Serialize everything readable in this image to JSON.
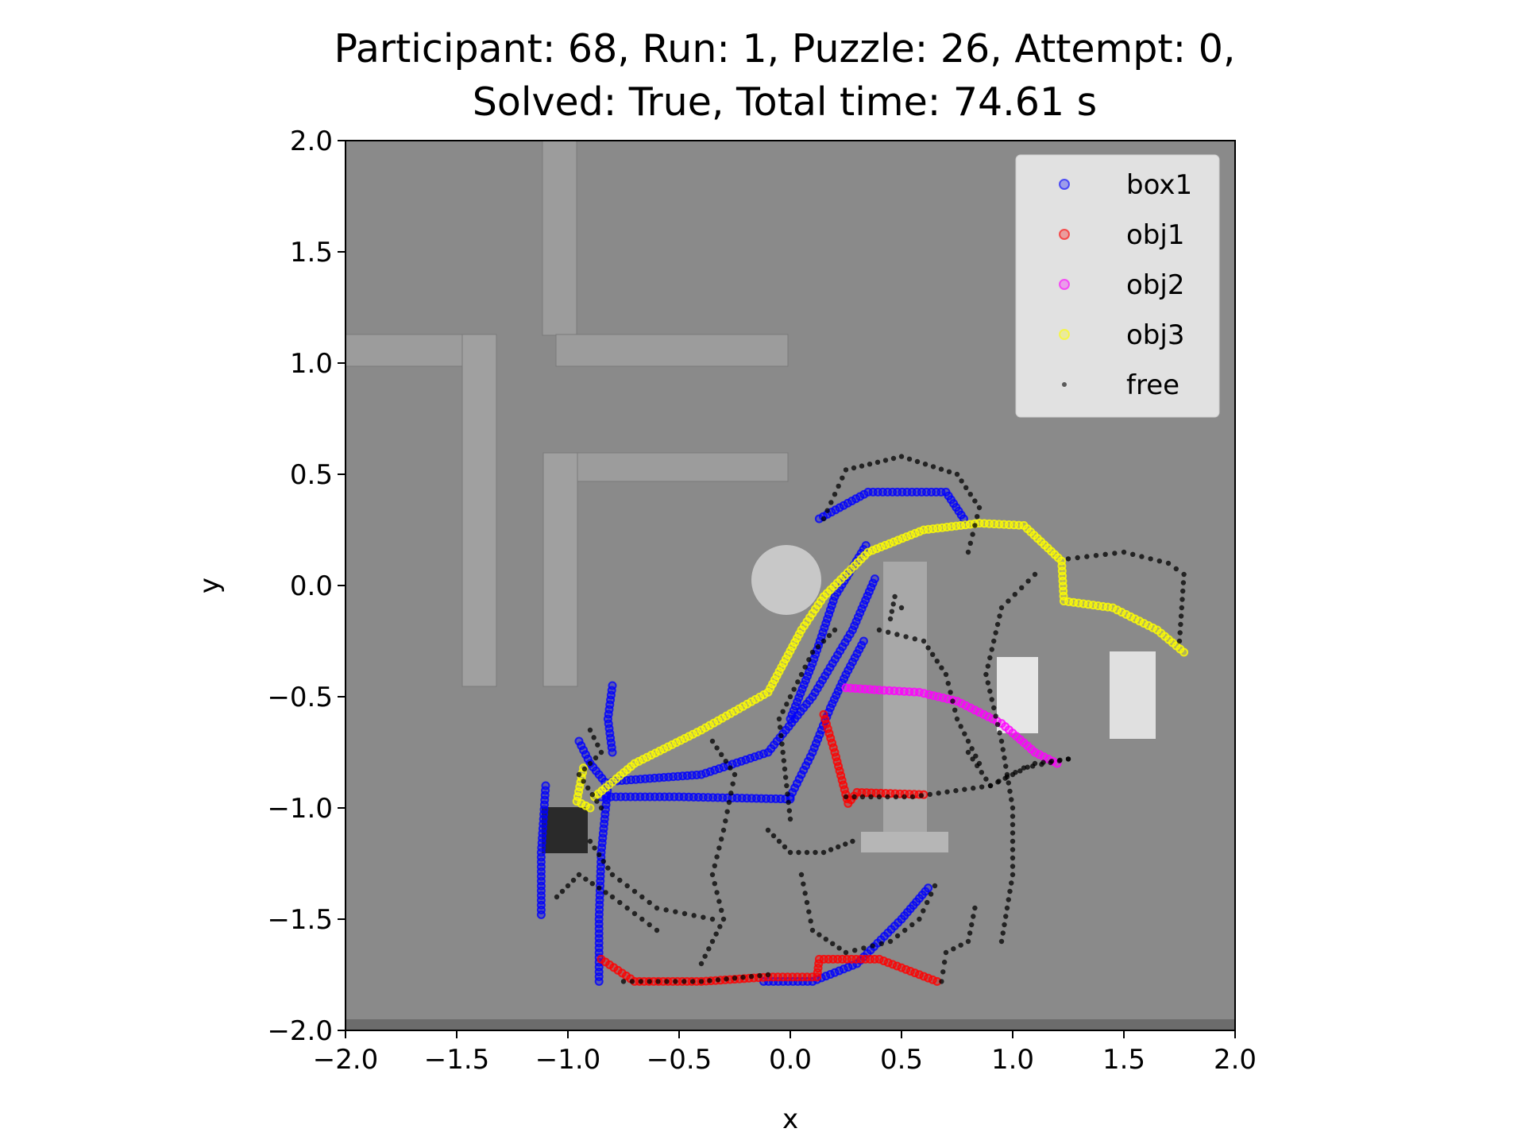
{
  "chart_data": {
    "type": "scatter",
    "title_line1": "Participant: 68, Run: 1, Puzzle: 26, Attempt: 0,",
    "title_line2": "Solved: True, Total time: 74.61 s",
    "xlabel": "x",
    "ylabel": "y",
    "xlim": [
      -2.0,
      2.0
    ],
    "ylim": [
      -2.0,
      2.0
    ],
    "xticks": [
      "−2.0",
      "−1.5",
      "−1.0",
      "−0.5",
      "0.0",
      "0.5",
      "1.0",
      "1.5",
      "2.0"
    ],
    "yticks": [
      "2.0",
      "1.5",
      "1.0",
      "0.5",
      "0.0",
      "−0.5",
      "−1.0",
      "−1.5",
      "−2.0"
    ],
    "xtick_values": [
      -2.0,
      -1.5,
      -1.0,
      -0.5,
      0.0,
      0.5,
      1.0,
      1.5,
      2.0
    ],
    "ytick_values": [
      2.0,
      1.5,
      1.0,
      0.5,
      0.0,
      -0.5,
      -1.0,
      -1.5,
      -2.0
    ],
    "grid": false,
    "legend_position": "top-right",
    "legend": [
      {
        "name": "box1",
        "color": "#0000ff",
        "marker": "circle"
      },
      {
        "name": "obj1",
        "color": "#ff0000",
        "marker": "circle"
      },
      {
        "name": "obj2",
        "color": "#ff00ff",
        "marker": "circle"
      },
      {
        "name": "obj3",
        "color": "#ffff00",
        "marker": "circle"
      },
      {
        "name": "free",
        "color": "#000000",
        "marker": "dot"
      }
    ],
    "series": [
      {
        "name": "box1",
        "color": "#0000ff",
        "paths": [
          [
            [
              -1.12,
              -1.48
            ],
            [
              -1.12,
              -1.2
            ],
            [
              -1.1,
              -0.9
            ]
          ],
          [
            [
              -0.95,
              -0.7
            ],
            [
              -0.9,
              -0.8
            ],
            [
              -0.82,
              -0.9
            ],
            [
              -0.85,
              -1.2
            ],
            [
              -0.86,
              -1.5
            ],
            [
              -0.86,
              -1.78
            ]
          ],
          [
            [
              -0.8,
              -0.45
            ],
            [
              -0.82,
              -0.6
            ],
            [
              -0.8,
              -0.75
            ]
          ],
          [
            [
              -0.85,
              -0.95
            ],
            [
              -0.5,
              -0.95
            ],
            [
              0.0,
              -0.96
            ]
          ],
          [
            [
              -0.8,
              -0.88
            ],
            [
              -0.4,
              -0.85
            ],
            [
              -0.1,
              -0.75
            ],
            [
              0.1,
              -0.5
            ],
            [
              0.28,
              -0.2
            ],
            [
              0.38,
              0.03
            ]
          ],
          [
            [
              0.0,
              -0.6
            ],
            [
              0.1,
              -0.35
            ],
            [
              0.2,
              -0.05
            ],
            [
              0.34,
              0.18
            ]
          ],
          [
            [
              0.13,
              0.3
            ],
            [
              0.35,
              0.42
            ],
            [
              0.7,
              0.42
            ],
            [
              0.78,
              0.3
            ]
          ],
          [
            [
              0.33,
              -0.25
            ],
            [
              0.25,
              -0.4
            ],
            [
              0.18,
              -0.55
            ],
            [
              0.1,
              -0.75
            ],
            [
              0.0,
              -0.95
            ]
          ],
          [
            [
              -0.12,
              -1.78
            ],
            [
              0.1,
              -1.78
            ],
            [
              0.3,
              -1.7
            ],
            [
              0.5,
              -1.5
            ],
            [
              0.62,
              -1.36
            ]
          ]
        ]
      },
      {
        "name": "obj1",
        "color": "#ff0000",
        "paths": [
          [
            [
              -0.85,
              -1.68
            ],
            [
              -0.7,
              -1.78
            ],
            [
              -0.4,
              -1.78
            ],
            [
              -0.1,
              -1.76
            ],
            [
              0.12,
              -1.76
            ],
            [
              0.13,
              -1.68
            ],
            [
              0.4,
              -1.68
            ],
            [
              0.66,
              -1.78
            ]
          ],
          [
            [
              0.15,
              -0.58
            ],
            [
              0.2,
              -0.75
            ],
            [
              0.26,
              -0.98
            ],
            [
              0.3,
              -0.93
            ],
            [
              0.6,
              -0.94
            ]
          ]
        ]
      },
      {
        "name": "obj2",
        "color": "#ff00ff",
        "paths": [
          [
            [
              0.25,
              -0.46
            ],
            [
              0.4,
              -0.47
            ],
            [
              0.58,
              -0.48
            ],
            [
              0.75,
              -0.52
            ],
            [
              0.95,
              -0.62
            ],
            [
              1.1,
              -0.75
            ],
            [
              1.2,
              -0.8
            ]
          ]
        ]
      },
      {
        "name": "obj3",
        "color": "#ffff00",
        "paths": [
          [
            [
              -0.93,
              -0.82
            ],
            [
              -0.96,
              -0.97
            ],
            [
              -0.9,
              -1.0
            ]
          ],
          [
            [
              -0.88,
              -0.95
            ],
            [
              -0.7,
              -0.8
            ],
            [
              -0.4,
              -0.65
            ],
            [
              -0.1,
              -0.48
            ],
            [
              0.05,
              -0.2
            ],
            [
              0.15,
              -0.05
            ],
            [
              0.35,
              0.15
            ],
            [
              0.6,
              0.25
            ],
            [
              0.85,
              0.28
            ],
            [
              1.05,
              0.27
            ],
            [
              1.22,
              0.11
            ],
            [
              1.23,
              -0.07
            ],
            [
              1.45,
              -0.1
            ],
            [
              1.65,
              -0.2
            ],
            [
              1.77,
              -0.3
            ]
          ]
        ]
      },
      {
        "name": "free",
        "color": "#000000",
        "paths": [
          [
            [
              0.15,
              0.3
            ],
            [
              0.25,
              0.52
            ],
            [
              0.5,
              0.58
            ],
            [
              0.75,
              0.5
            ],
            [
              0.85,
              0.35
            ],
            [
              0.8,
              0.15
            ]
          ],
          [
            [
              -0.75,
              -1.78
            ],
            [
              -0.4,
              -1.78
            ],
            [
              -0.1,
              -1.75
            ]
          ],
          [
            [
              0.68,
              -1.78
            ],
            [
              0.7,
              -1.65
            ],
            [
              0.8,
              -1.6
            ],
            [
              0.83,
              -1.45
            ]
          ],
          [
            [
              0.95,
              -1.6
            ],
            [
              1.0,
              -1.3
            ],
            [
              1.0,
              -1.0
            ],
            [
              0.95,
              -0.7
            ],
            [
              0.88,
              -0.4
            ],
            [
              0.95,
              -0.1
            ],
            [
              1.1,
              0.05
            ]
          ],
          [
            [
              1.25,
              0.12
            ],
            [
              1.5,
              0.15
            ],
            [
              1.7,
              0.1
            ],
            [
              1.77,
              0.05
            ],
            [
              1.76,
              -0.1
            ],
            [
              1.75,
              -0.25
            ]
          ],
          [
            [
              0.25,
              -0.95
            ],
            [
              0.55,
              -0.95
            ],
            [
              0.9,
              -0.9
            ],
            [
              1.05,
              -0.82
            ],
            [
              1.25,
              -0.78
            ]
          ],
          [
            [
              -0.9,
              -1.15
            ],
            [
              -0.8,
              -1.3
            ],
            [
              -0.6,
              -1.45
            ],
            [
              -0.35,
              -1.5
            ]
          ],
          [
            [
              -1.05,
              -1.4
            ],
            [
              -0.95,
              -1.3
            ],
            [
              -0.8,
              -1.4
            ],
            [
              -0.6,
              -1.55
            ]
          ],
          [
            [
              -0.1,
              -1.1
            ],
            [
              0.0,
              -1.2
            ],
            [
              0.15,
              -1.2
            ],
            [
              0.28,
              -1.15
            ]
          ],
          [
            [
              0.05,
              -1.3
            ],
            [
              0.1,
              -1.55
            ],
            [
              0.25,
              -1.65
            ],
            [
              0.45,
              -1.6
            ],
            [
              0.58,
              -1.5
            ],
            [
              0.65,
              -1.35
            ]
          ],
          [
            [
              -0.35,
              -0.7
            ],
            [
              -0.25,
              -0.85
            ],
            [
              -0.3,
              -1.1
            ],
            [
              -0.35,
              -1.3
            ],
            [
              -0.3,
              -1.5
            ],
            [
              -0.4,
              -1.7
            ]
          ],
          [
            [
              0.0,
              -1.05
            ],
            [
              -0.05,
              -0.6
            ],
            [
              0.1,
              -0.3
            ],
            [
              0.2,
              -0.2
            ]
          ],
          [
            [
              0.45,
              -0.15
            ],
            [
              0.47,
              -0.05
            ],
            [
              0.5,
              -0.1
            ]
          ],
          [
            [
              0.8,
              -0.75
            ],
            [
              0.9,
              -0.9
            ],
            [
              1.1,
              -0.8
            ],
            [
              1.25,
              -0.78
            ]
          ],
          [
            [
              0.4,
              -0.2
            ],
            [
              0.6,
              -0.25
            ],
            [
              0.7,
              -0.4
            ],
            [
              0.75,
              -0.6
            ],
            [
              0.85,
              -0.8
            ]
          ],
          [
            [
              -0.9,
              -0.65
            ],
            [
              -0.85,
              -0.75
            ],
            [
              -0.95,
              -0.85
            ],
            [
              -0.85,
              -1.0
            ]
          ]
        ]
      }
    ]
  }
}
